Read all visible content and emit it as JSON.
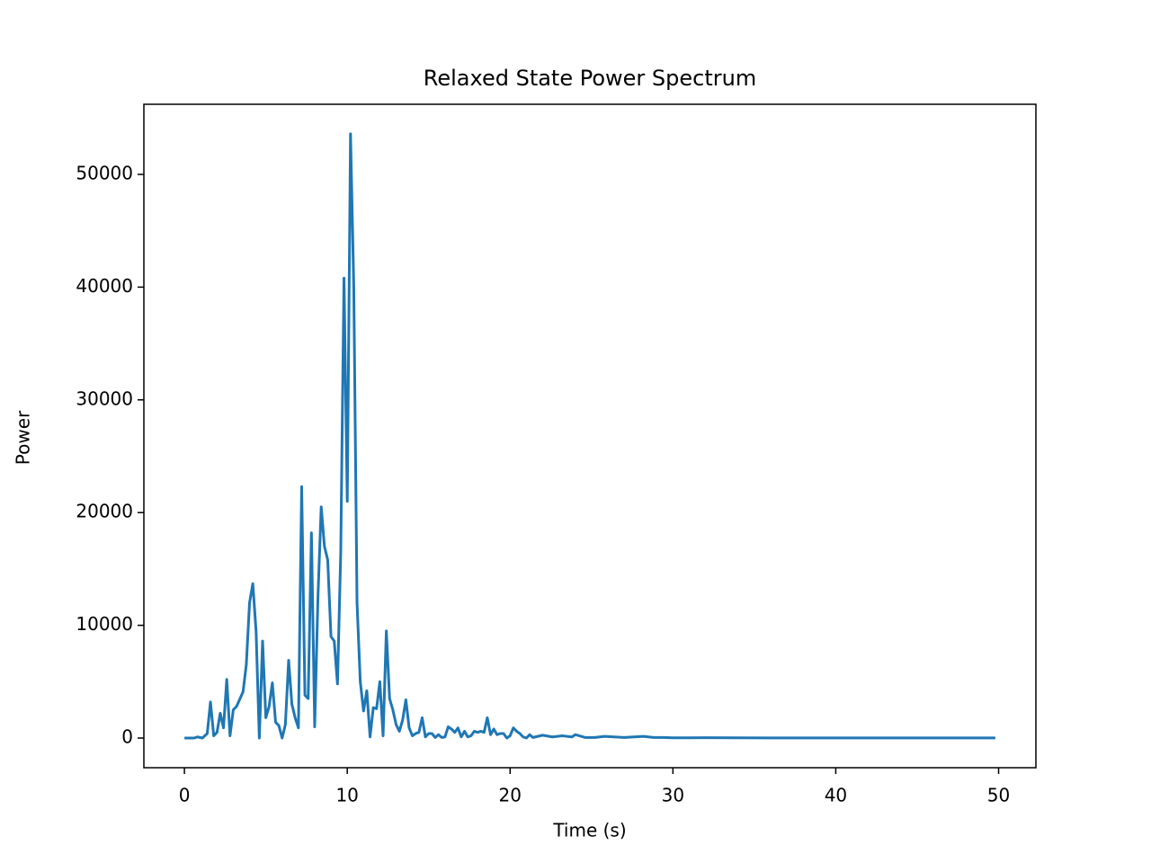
{
  "chart_data": {
    "type": "line",
    "title": "Relaxed State Power Spectrum",
    "x_label": "Time (s)",
    "y_label": "Power",
    "xlim": [
      -2.49,
      52.29
    ],
    "ylim": [
      -2632,
      56220
    ],
    "xticks": [
      0,
      10,
      20,
      30,
      40,
      50
    ],
    "yticks": [
      0,
      10000,
      20000,
      30000,
      40000,
      50000
    ],
    "x": [
      0,
      0.6,
      0.8,
      1.1,
      1.4,
      1.6,
      1.8,
      2.0,
      2.2,
      2.4,
      2.6,
      2.8,
      3.0,
      3.2,
      3.6,
      3.8,
      4.0,
      4.2,
      4.4,
      4.6,
      4.8,
      5.0,
      5.2,
      5.4,
      5.6,
      5.8,
      6.0,
      6.2,
      6.4,
      6.6,
      6.8,
      7.0,
      7.2,
      7.4,
      7.6,
      7.8,
      8.0,
      8.2,
      8.4,
      8.6,
      8.8,
      9.0,
      9.2,
      9.4,
      9.6,
      9.8,
      10.0,
      10.2,
      10.4,
      10.6,
      10.8,
      11.0,
      11.2,
      11.4,
      11.6,
      11.8,
      12.0,
      12.2,
      12.4,
      12.6,
      12.8,
      13.0,
      13.2,
      13.4,
      13.6,
      13.8,
      14.0,
      14.2,
      14.4,
      14.6,
      14.8,
      15.0,
      15.2,
      15.4,
      15.6,
      15.8,
      16.0,
      16.2,
      16.4,
      16.6,
      16.8,
      17.0,
      17.2,
      17.4,
      17.6,
      17.8,
      18.0,
      18.2,
      18.4,
      18.6,
      18.8,
      19.0,
      19.2,
      19.4,
      19.6,
      19.8,
      20.0,
      20.2,
      20.4,
      20.6,
      20.8,
      21.0,
      21.2,
      21.4,
      22.0,
      22.6,
      23.2,
      23.8,
      24.0,
      24.6,
      25.2,
      25.8,
      26.4,
      27.0,
      27.6,
      28.2,
      28.8,
      29.4,
      30.0,
      32.0,
      34.0,
      36.0,
      38.0,
      40.0,
      42.0,
      44.0,
      46.0,
      48.0,
      49.8
    ],
    "series": [
      {
        "name": "Power",
        "color": "#1f77b4",
        "values": [
          0,
          0,
          100,
          0,
          400,
          3200,
          200,
          500,
          2200,
          900,
          5200,
          200,
          2500,
          2800,
          4100,
          6500,
          12000,
          13700,
          9500,
          0,
          8600,
          1800,
          2800,
          4900,
          1400,
          1100,
          0,
          1200,
          6900,
          3000,
          1800,
          900,
          22300,
          3800,
          3500,
          18200,
          1000,
          12500,
          20500,
          17000,
          15800,
          9000,
          8600,
          4800,
          16500,
          40800,
          21000,
          53600,
          40000,
          12000,
          5000,
          2400,
          4200,
          100,
          2700,
          2600,
          5000,
          200,
          9500,
          3500,
          2500,
          1200,
          600,
          1600,
          3400,
          900,
          200,
          400,
          500,
          1800,
          100,
          400,
          400,
          50,
          300,
          50,
          100,
          1000,
          800,
          500,
          900,
          100,
          600,
          100,
          200,
          600,
          500,
          600,
          500,
          1800,
          300,
          800,
          300,
          400,
          400,
          0,
          200,
          900,
          600,
          400,
          100,
          0,
          300,
          50,
          250,
          100,
          200,
          100,
          300,
          50,
          50,
          150,
          100,
          50,
          100,
          150,
          50,
          50,
          20,
          30,
          20,
          10,
          10,
          5,
          5,
          5,
          5,
          5,
          5
        ]
      }
    ]
  }
}
